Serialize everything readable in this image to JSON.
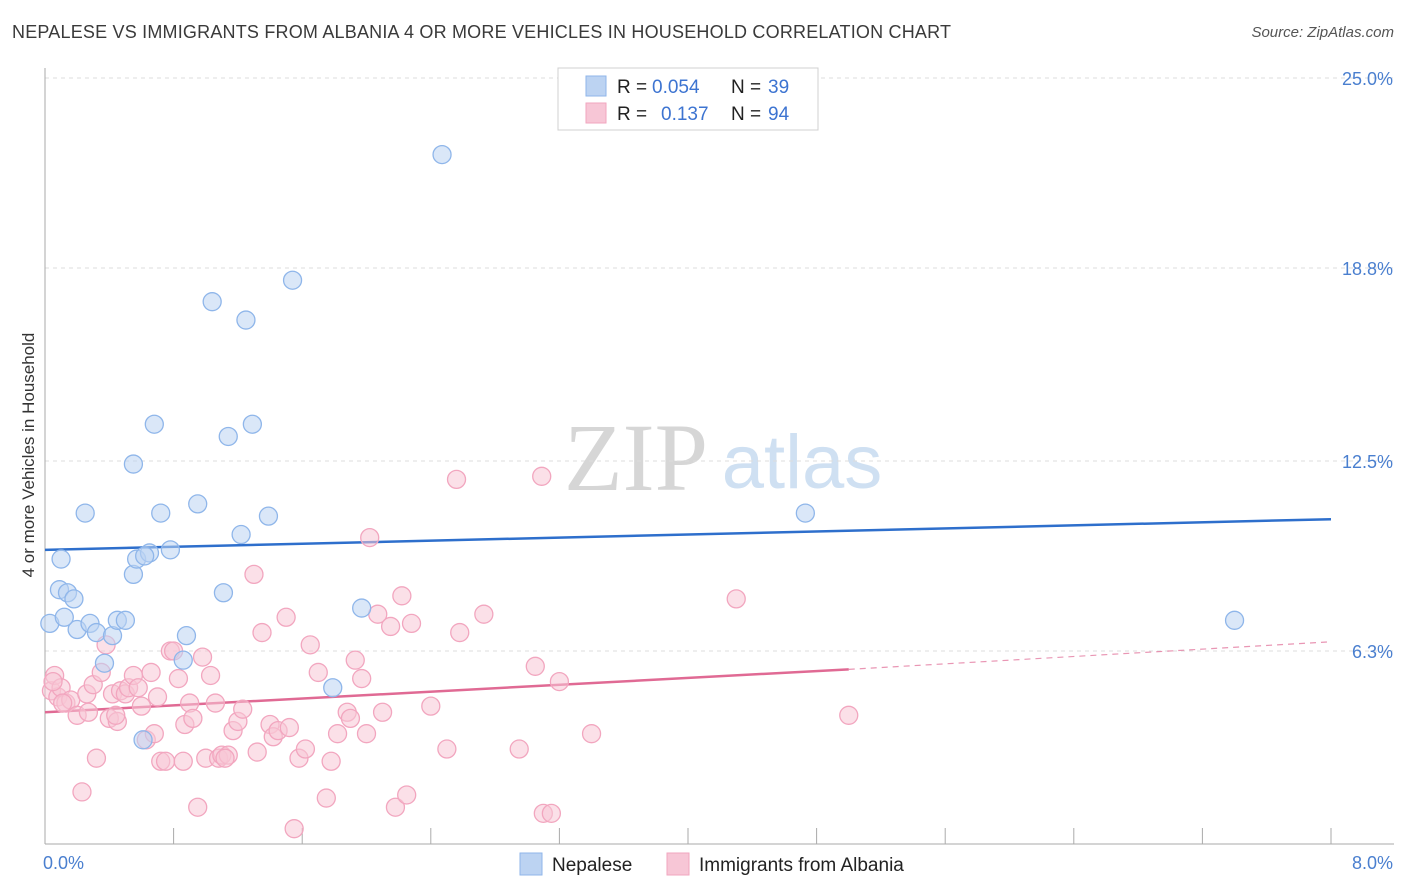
{
  "title": "NEPALESE VS IMMIGRANTS FROM ALBANIA 4 OR MORE VEHICLES IN HOUSEHOLD CORRELATION CHART",
  "source": "Source: ZipAtlas.com",
  "watermark": {
    "zip": "ZIP",
    "atlas": "atlas"
  },
  "chart_data": {
    "type": "scatter",
    "title": "NEPALESE VS IMMIGRANTS FROM ALBANIA 4 OR MORE VEHICLES IN HOUSEHOLD CORRELATION CHART",
    "xlabel": "",
    "ylabel": "4 or more Vehicles in Household",
    "xlim": [
      0,
      8.0
    ],
    "ylim": [
      0,
      25.0
    ],
    "x_tick_labels": [
      "0.0%",
      "8.0%"
    ],
    "y_ticks": [
      6.3,
      12.5,
      18.8,
      25.0
    ],
    "y_tick_labels": [
      "6.3%",
      "12.5%",
      "18.8%",
      "25.0%"
    ],
    "legend": [
      {
        "r_label": "R =",
        "r_value": "0.054",
        "n_label": "N =",
        "n_value": "39"
      },
      {
        "r_label": "R =",
        "r_value": "0.137",
        "n_label": "N =",
        "n_value": "94"
      }
    ],
    "series": [
      {
        "name": "Nepalese",
        "color": "#8fb6ea",
        "fill": "#bcd3f2",
        "line_color": "#2e6fcc",
        "trend": {
          "x0": 0,
          "y0": 9.6,
          "x1": 8.0,
          "y1": 10.6
        },
        "points": [
          [
            0.03,
            7.2
          ],
          [
            0.09,
            8.3
          ],
          [
            0.1,
            9.3
          ],
          [
            0.14,
            8.2
          ],
          [
            0.18,
            8.0
          ],
          [
            0.2,
            7.0
          ],
          [
            0.25,
            10.8
          ],
          [
            0.28,
            7.2
          ],
          [
            0.32,
            6.9
          ],
          [
            0.37,
            5.9
          ],
          [
            0.42,
            6.8
          ],
          [
            0.45,
            7.3
          ],
          [
            0.5,
            7.3
          ],
          [
            0.55,
            12.4
          ],
          [
            0.55,
            8.8
          ],
          [
            0.57,
            9.3
          ],
          [
            0.61,
            3.4
          ],
          [
            0.65,
            9.5
          ],
          [
            0.68,
            13.7
          ],
          [
            0.72,
            10.8
          ],
          [
            0.78,
            9.6
          ],
          [
            0.86,
            6.0
          ],
          [
            0.88,
            6.8
          ],
          [
            0.95,
            11.1
          ],
          [
            1.04,
            17.7
          ],
          [
            1.11,
            8.2
          ],
          [
            1.14,
            13.3
          ],
          [
            1.22,
            10.1
          ],
          [
            1.25,
            17.1
          ],
          [
            1.29,
            13.7
          ],
          [
            1.39,
            10.7
          ],
          [
            1.54,
            18.4
          ],
          [
            1.79,
            5.1
          ],
          [
            1.97,
            7.7
          ],
          [
            2.47,
            22.5
          ],
          [
            4.73,
            10.8
          ],
          [
            7.4,
            7.3
          ],
          [
            0.62,
            9.4
          ],
          [
            0.12,
            7.4
          ]
        ]
      },
      {
        "name": "Immigrants from Albania",
        "color": "#f2a6bf",
        "fill": "#f7c6d6",
        "line_color": "#e06a94",
        "trend": {
          "x0": 0,
          "y0": 4.3,
          "x1": 5.0,
          "y1": 5.7
        },
        "trend_dashed": {
          "x0": 5.0,
          "y0": 5.7,
          "x1": 8.0,
          "y1": 6.6
        },
        "points": [
          [
            0.04,
            5.0
          ],
          [
            0.06,
            5.5
          ],
          [
            0.08,
            4.8
          ],
          [
            0.1,
            5.1
          ],
          [
            0.13,
            4.6
          ],
          [
            0.16,
            4.7
          ],
          [
            0.2,
            4.2
          ],
          [
            0.23,
            1.7
          ],
          [
            0.26,
            4.9
          ],
          [
            0.3,
            5.2
          ],
          [
            0.32,
            2.8
          ],
          [
            0.35,
            5.6
          ],
          [
            0.38,
            6.5
          ],
          [
            0.4,
            4.1
          ],
          [
            0.42,
            4.9
          ],
          [
            0.45,
            4.0
          ],
          [
            0.47,
            5.0
          ],
          [
            0.5,
            4.9
          ],
          [
            0.52,
            5.1
          ],
          [
            0.55,
            5.5
          ],
          [
            0.58,
            5.1
          ],
          [
            0.6,
            4.5
          ],
          [
            0.63,
            3.4
          ],
          [
            0.66,
            5.6
          ],
          [
            0.68,
            3.6
          ],
          [
            0.7,
            4.8
          ],
          [
            0.72,
            2.7
          ],
          [
            0.75,
            2.7
          ],
          [
            0.78,
            6.3
          ],
          [
            0.8,
            6.3
          ],
          [
            0.83,
            5.4
          ],
          [
            0.87,
            3.9
          ],
          [
            0.9,
            4.6
          ],
          [
            0.92,
            4.1
          ],
          [
            0.95,
            1.2
          ],
          [
            0.98,
            6.1
          ],
          [
            1.0,
            2.8
          ],
          [
            1.03,
            5.5
          ],
          [
            1.06,
            4.6
          ],
          [
            1.08,
            2.8
          ],
          [
            1.1,
            2.9
          ],
          [
            1.14,
            2.9
          ],
          [
            1.17,
            3.7
          ],
          [
            1.2,
            4.0
          ],
          [
            1.23,
            4.4
          ],
          [
            1.3,
            8.8
          ],
          [
            1.32,
            3.0
          ],
          [
            1.35,
            6.9
          ],
          [
            1.4,
            3.9
          ],
          [
            1.42,
            3.5
          ],
          [
            1.45,
            3.7
          ],
          [
            1.5,
            7.4
          ],
          [
            1.52,
            3.8
          ],
          [
            1.55,
            0.5
          ],
          [
            1.58,
            2.8
          ],
          [
            1.62,
            3.1
          ],
          [
            1.65,
            6.5
          ],
          [
            1.7,
            5.6
          ],
          [
            1.75,
            1.5
          ],
          [
            1.78,
            2.7
          ],
          [
            1.82,
            3.6
          ],
          [
            1.88,
            4.3
          ],
          [
            1.9,
            4.1
          ],
          [
            1.93,
            6.0
          ],
          [
            1.97,
            5.4
          ],
          [
            2.0,
            3.6
          ],
          [
            2.02,
            10.0
          ],
          [
            2.07,
            7.5
          ],
          [
            2.1,
            4.3
          ],
          [
            2.15,
            7.1
          ],
          [
            2.18,
            1.2
          ],
          [
            2.22,
            8.1
          ],
          [
            2.25,
            1.6
          ],
          [
            2.28,
            7.2
          ],
          [
            2.4,
            4.5
          ],
          [
            2.5,
            3.1
          ],
          [
            2.56,
            11.9
          ],
          [
            2.58,
            6.9
          ],
          [
            2.73,
            7.5
          ],
          [
            2.95,
            3.1
          ],
          [
            3.05,
            5.8
          ],
          [
            3.09,
            12.0
          ],
          [
            3.1,
            1.0
          ],
          [
            3.15,
            1.0
          ],
          [
            3.2,
            5.3
          ],
          [
            3.4,
            3.6
          ],
          [
            4.3,
            8.0
          ],
          [
            5.0,
            4.2
          ],
          [
            0.05,
            5.3
          ],
          [
            0.11,
            4.6
          ],
          [
            0.27,
            4.3
          ],
          [
            0.44,
            4.2
          ],
          [
            0.86,
            2.7
          ],
          [
            1.12,
            2.8
          ]
        ]
      }
    ]
  }
}
